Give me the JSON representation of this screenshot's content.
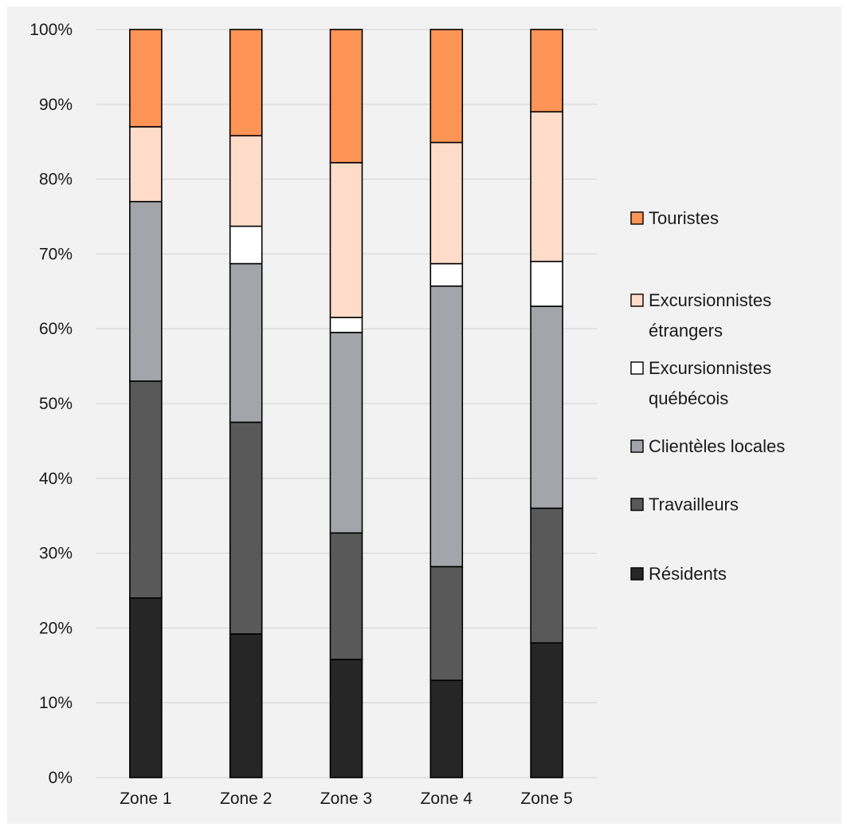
{
  "chart_data": {
    "type": "bar",
    "stacked": true,
    "percent": true,
    "categories": [
      "Zone 1",
      "Zone 2",
      "Zone 3",
      "Zone 4",
      "Zone 5"
    ],
    "ylim": [
      0,
      100
    ],
    "yticks": [
      "0%",
      "10%",
      "20%",
      "30%",
      "40%",
      "50%",
      "60%",
      "70%",
      "80%",
      "90%",
      "100%"
    ],
    "grid": true,
    "legend_position": "right",
    "series": [
      {
        "name": "Résidents",
        "color": "#262626",
        "values": [
          24,
          19.2,
          15.8,
          13,
          18
        ]
      },
      {
        "name": "Travailleurs",
        "color": "#595959",
        "values": [
          29,
          28.3,
          16.9,
          15.2,
          18
        ]
      },
      {
        "name": "Clientèles locales",
        "color": "#a3a5ab",
        "values": [
          24,
          21.2,
          26.8,
          37.5,
          27
        ]
      },
      {
        "name": "Excursionnistes québécois",
        "color": "#ffffff",
        "values": [
          0,
          5,
          2,
          3,
          6
        ]
      },
      {
        "name": "Excursionnistes étrangers",
        "color": "#ffdcc9",
        "values": [
          10,
          12.1,
          20.7,
          16.2,
          20
        ]
      },
      {
        "name": "Touristes",
        "color": "#ff9457",
        "values": [
          13,
          14.2,
          17.8,
          15.1,
          11
        ]
      }
    ],
    "legend_order": [
      "Touristes",
      "Excursionnistes étrangers",
      "Excursionnistes québécois",
      "Clientèles locales",
      "Travailleurs",
      "Résidents"
    ],
    "legend_lines": [
      [
        "Touristes"
      ],
      [
        "Excursionnistes",
        "étrangers"
      ],
      [
        "Excursionnistes",
        "québécois"
      ],
      [
        "Clientèles locales"
      ],
      [
        "Travailleurs"
      ],
      [
        "Résidents"
      ]
    ]
  }
}
